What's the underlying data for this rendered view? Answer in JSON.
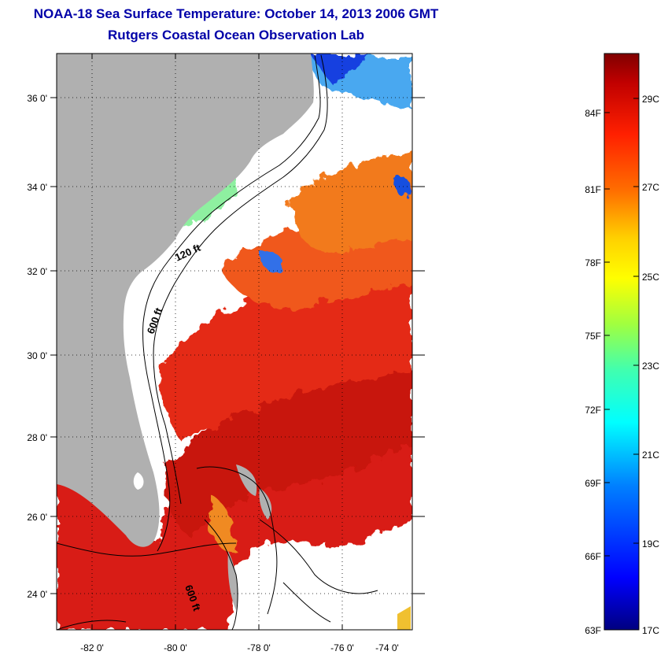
{
  "header": {
    "title": "NOAA-18 Sea Surface Temperature:  October 14, 2013 2006 GMT",
    "subtitle": "Rutgers Coastal Ocean Observation Lab"
  },
  "map": {
    "lon_ticks": [
      "-82 0'",
      "-80 0'",
      "-78 0'",
      "-76 0'",
      "-74 0'"
    ],
    "lat_ticks": [
      "36 0'",
      "34 0'",
      "32 0'",
      "30 0'",
      "28 0'",
      "26 0'",
      "24 0'"
    ],
    "contour_labels": [
      "120 ft",
      "600 ft",
      "600 ft"
    ],
    "colors": {
      "land": "#b0b0b0",
      "no_data": "#ffffff",
      "warm": "#e02010",
      "hot": "#b00000",
      "orange": "#f07020",
      "cool": "#3080ff"
    }
  },
  "colorbar": {
    "fahrenheit": [
      "84F",
      "81F",
      "78F",
      "75F",
      "72F",
      "69F",
      "66F",
      "63F"
    ],
    "celsius": [
      "29C",
      "27C",
      "25C",
      "23C",
      "21C",
      "19C",
      "17C"
    ],
    "gradient": [
      "#800000",
      "#c00000",
      "#ff2000",
      "#ff7000",
      "#ffd000",
      "#ffff00",
      "#a0ff40",
      "#40ffb0",
      "#00ffff",
      "#0080ff",
      "#0000ff",
      "#000080"
    ]
  }
}
